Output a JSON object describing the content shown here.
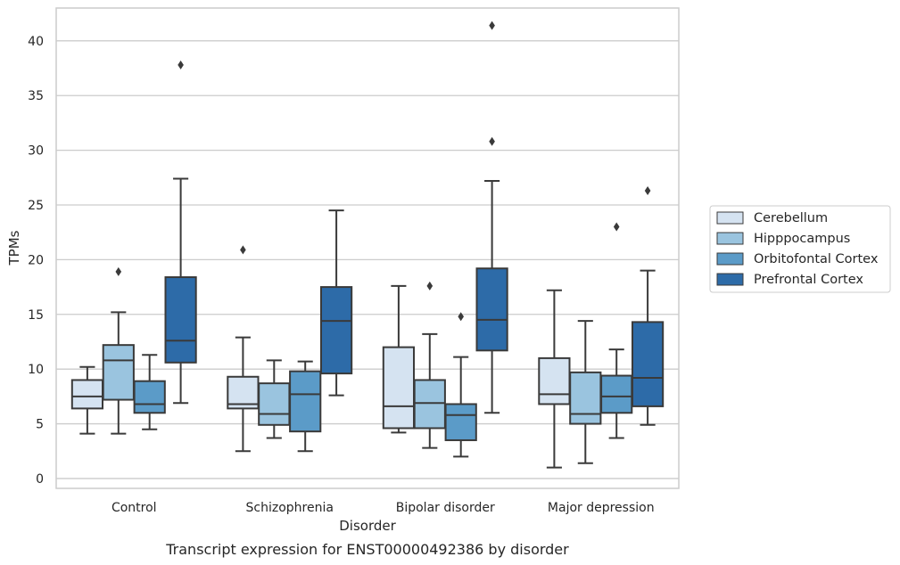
{
  "chart_data": {
    "type": "box",
    "xlabel": "Disorder",
    "ylabel": "TPMs",
    "caption": "Transcript expression for ENST00000492386 by disorder",
    "ylim": [
      -0.9,
      43
    ],
    "yticks": [
      0,
      5,
      10,
      15,
      20,
      25,
      30,
      35,
      40
    ],
    "grid": true,
    "legend_position": "right",
    "categories": [
      "Control",
      "Schizophrenia",
      "Bipolar disorder",
      "Major depression"
    ],
    "series": [
      {
        "name": "Cerebellum",
        "color": "#d5e3f1",
        "boxes": [
          {
            "whislo": 4.1,
            "q1": 6.4,
            "med": 7.5,
            "q3": 9.0,
            "whishi": 10.2,
            "fliers": []
          },
          {
            "whislo": 2.5,
            "q1": 6.4,
            "med": 6.8,
            "q3": 9.3,
            "whishi": 12.9,
            "fliers": [
              20.9
            ]
          },
          {
            "whislo": 4.2,
            "q1": 4.6,
            "med": 6.6,
            "q3": 12.0,
            "whishi": 17.6,
            "fliers": []
          },
          {
            "whislo": 1.0,
            "q1": 6.8,
            "med": 7.7,
            "q3": 11.0,
            "whishi": 17.2,
            "fliers": []
          }
        ]
      },
      {
        "name": "Hipppocampus",
        "color": "#9ac4df",
        "boxes": [
          {
            "whislo": 4.1,
            "q1": 7.2,
            "med": 10.8,
            "q3": 12.2,
            "whishi": 15.2,
            "fliers": [
              18.9
            ]
          },
          {
            "whislo": 3.7,
            "q1": 4.9,
            "med": 5.9,
            "q3": 8.7,
            "whishi": 10.8,
            "fliers": []
          },
          {
            "whislo": 2.8,
            "q1": 4.6,
            "med": 6.9,
            "q3": 9.0,
            "whishi": 13.2,
            "fliers": [
              17.6
            ]
          },
          {
            "whislo": 1.4,
            "q1": 5.0,
            "med": 5.9,
            "q3": 9.7,
            "whishi": 14.4,
            "fliers": []
          }
        ]
      },
      {
        "name": "Orbitofontal Cortex",
        "color": "#5b9bc8",
        "boxes": [
          {
            "whislo": 4.5,
            "q1": 6.0,
            "med": 6.8,
            "q3": 8.9,
            "whishi": 11.3,
            "fliers": []
          },
          {
            "whislo": 2.5,
            "q1": 4.3,
            "med": 7.7,
            "q3": 9.8,
            "whishi": 10.7,
            "fliers": []
          },
          {
            "whislo": 2.0,
            "q1": 3.5,
            "med": 5.8,
            "q3": 6.8,
            "whishi": 11.1,
            "fliers": [
              14.8
            ]
          },
          {
            "whislo": 3.7,
            "q1": 6.0,
            "med": 7.5,
            "q3": 9.4,
            "whishi": 11.8,
            "fliers": [
              23.0
            ]
          }
        ]
      },
      {
        "name": "Prefrontal Cortex",
        "color": "#2d6ba8",
        "boxes": [
          {
            "whislo": 6.9,
            "q1": 10.6,
            "med": 12.6,
            "q3": 18.4,
            "whishi": 27.4,
            "fliers": [
              37.8
            ]
          },
          {
            "whislo": 7.6,
            "q1": 9.6,
            "med": 14.4,
            "q3": 17.5,
            "whishi": 24.5,
            "fliers": []
          },
          {
            "whislo": 6.0,
            "q1": 11.7,
            "med": 14.5,
            "q3": 19.2,
            "whishi": 27.2,
            "fliers": [
              30.8,
              41.4
            ]
          },
          {
            "whislo": 4.9,
            "q1": 6.6,
            "med": 9.2,
            "q3": 14.3,
            "whishi": 19.0,
            "fliers": [
              26.3
            ]
          }
        ]
      }
    ]
  }
}
